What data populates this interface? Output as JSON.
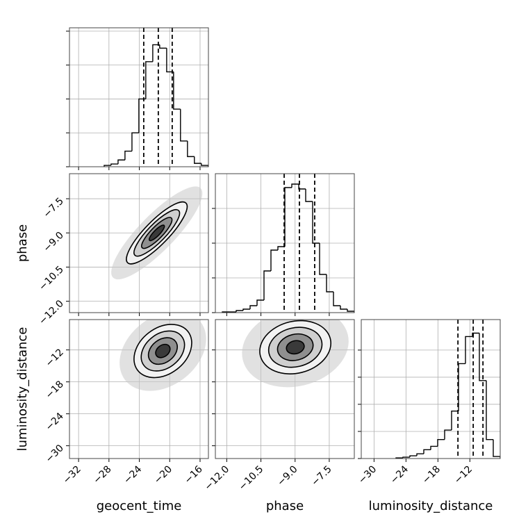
{
  "chart_data": [
    {
      "type": "histogram",
      "variable": "geocent_time",
      "bins": [
        -28.63,
        -27.72,
        -26.8,
        -25.89,
        -24.97,
        -24.06,
        -23.15,
        -22.23,
        -21.32,
        -20.4,
        -19.49,
        -18.58,
        -17.66,
        -16.75,
        -15.83,
        -14.92
      ],
      "values": [
        2,
        4,
        10,
        23,
        50,
        100,
        155,
        180,
        175,
        140,
        85,
        38,
        15,
        5,
        2
      ],
      "quantiles": [
        -23.42,
        -21.5,
        -19.67
      ],
      "color": "#000000",
      "xlim": [
        -33.2,
        -14.9
      ],
      "xticks": [
        -32,
        -28,
        -24,
        -20,
        -16
      ],
      "ylim": [
        0,
        205
      ],
      "yticks": [
        0,
        50,
        100,
        150,
        200
      ],
      "grid": true
    },
    {
      "type": "contour",
      "center": [
        -21.7,
        -9.0
      ],
      "sigma": [
        2.0,
        0.68
      ],
      "corr": 0.85,
      "levels": [
        2,
        1.5,
        1,
        0.5
      ],
      "cloud": 3,
      "xlim": [
        -33.2,
        -14.9
      ],
      "xticks": [
        -32,
        -28,
        -24,
        -20,
        -16
      ],
      "ylim": [
        -12.5,
        -6.4
      ],
      "ylabel": "phase",
      "yticks": [
        {
          "value": -12.0,
          "label": "−12.0"
        },
        {
          "value": -10.5,
          "label": "−10.5"
        },
        {
          "value": -9.0,
          "label": "−9.0"
        },
        {
          "value": -7.5,
          "label": "−7.5"
        }
      ],
      "grid": true
    },
    {
      "type": "histogram",
      "variable": "phase",
      "bins": [
        -12.195,
        -11.89,
        -11.585,
        -11.28,
        -10.975,
        -10.67,
        -10.365,
        -10.06,
        -9.755,
        -9.45,
        -9.145,
        -8.84,
        -8.535,
        -8.23,
        -7.925,
        -7.62,
        -7.315,
        -7.01,
        -6.705,
        -6.4
      ],
      "values": [
        1,
        1,
        3,
        5,
        10,
        18,
        60,
        90,
        95,
        180,
        185,
        178,
        160,
        100,
        55,
        30,
        10,
        5,
        2
      ],
      "quantiles": [
        -9.48,
        -8.81,
        -8.14
      ],
      "color": "#000000",
      "xlim": [
        -12.5,
        -6.4
      ],
      "xticks": [
        -12.0,
        -10.5,
        -9.0,
        -7.5
      ],
      "ylim": [
        0,
        200
      ],
      "yticks": [
        0,
        50,
        100,
        150
      ],
      "grid": true
    },
    {
      "type": "contour",
      "center": [
        -20.9,
        -12.2
      ],
      "sigma": [
        1.9,
        2.5
      ],
      "corr": 0.3,
      "levels": [
        2,
        1.5,
        1,
        0.5
      ],
      "cloud": 3,
      "xlim": [
        -33.2,
        -14.9
      ],
      "xlabel": "geocent_time",
      "xticks": [
        {
          "value": -32,
          "label": "−32"
        },
        {
          "value": -28,
          "label": "−28"
        },
        {
          "value": -24,
          "label": "−24"
        },
        {
          "value": -20,
          "label": "−20"
        },
        {
          "value": -16,
          "label": "−16"
        }
      ],
      "ylim": [
        -32.4,
        -6.3
      ],
      "ylabel": "luminosity_distance",
      "yticks": [
        {
          "value": -30,
          "label": "−30"
        },
        {
          "value": -24,
          "label": "−24"
        },
        {
          "value": -18,
          "label": "−18"
        },
        {
          "value": -12,
          "label": "−12"
        }
      ],
      "grid": true
    },
    {
      "type": "contour",
      "center": [
        -8.99,
        -11.5
      ],
      "sigma": [
        0.78,
        2.5
      ],
      "corr": 0.15,
      "levels": [
        2,
        1.5,
        1,
        0.5
      ],
      "cloud": 3,
      "xlim": [
        -12.5,
        -6.4
      ],
      "xlabel": "phase",
      "xticks": [
        {
          "value": -12.0,
          "label": "−12.0"
        },
        {
          "value": -10.5,
          "label": "−10.5"
        },
        {
          "value": -9.0,
          "label": "−9.0"
        },
        {
          "value": -7.5,
          "label": "−7.5"
        }
      ],
      "ylim": [
        -32.4,
        -6.3
      ],
      "yticks": [
        -30,
        -24,
        -18,
        -12
      ],
      "grid": true
    },
    {
      "type": "histogram",
      "variable": "luminosity_distance",
      "bins": [
        -25.875,
        -24.57,
        -23.265,
        -21.96,
        -20.655,
        -19.35,
        -18.045,
        -16.74,
        -15.435,
        -14.13,
        -12.825,
        -11.52,
        -10.215,
        -8.91,
        -7.605,
        -6.3
      ],
      "values": [
        1,
        2,
        4,
        7,
        13,
        18,
        28,
        42,
        70,
        140,
        180,
        185,
        115,
        28,
        3
      ],
      "quantiles": [
        -14.24,
        -11.37,
        -9.54
      ],
      "color": "#000000",
      "xlim": [
        -32.4,
        -6.3
      ],
      "xlabel": "luminosity_distance",
      "xticks": [
        {
          "value": -30,
          "label": "−30"
        },
        {
          "value": -24,
          "label": "−24"
        },
        {
          "value": -18,
          "label": "−18"
        },
        {
          "value": -12,
          "label": "−12"
        }
      ],
      "ylim": [
        0,
        205
      ],
      "yticks": [
        0,
        40,
        80,
        120,
        160
      ],
      "grid": true
    }
  ]
}
